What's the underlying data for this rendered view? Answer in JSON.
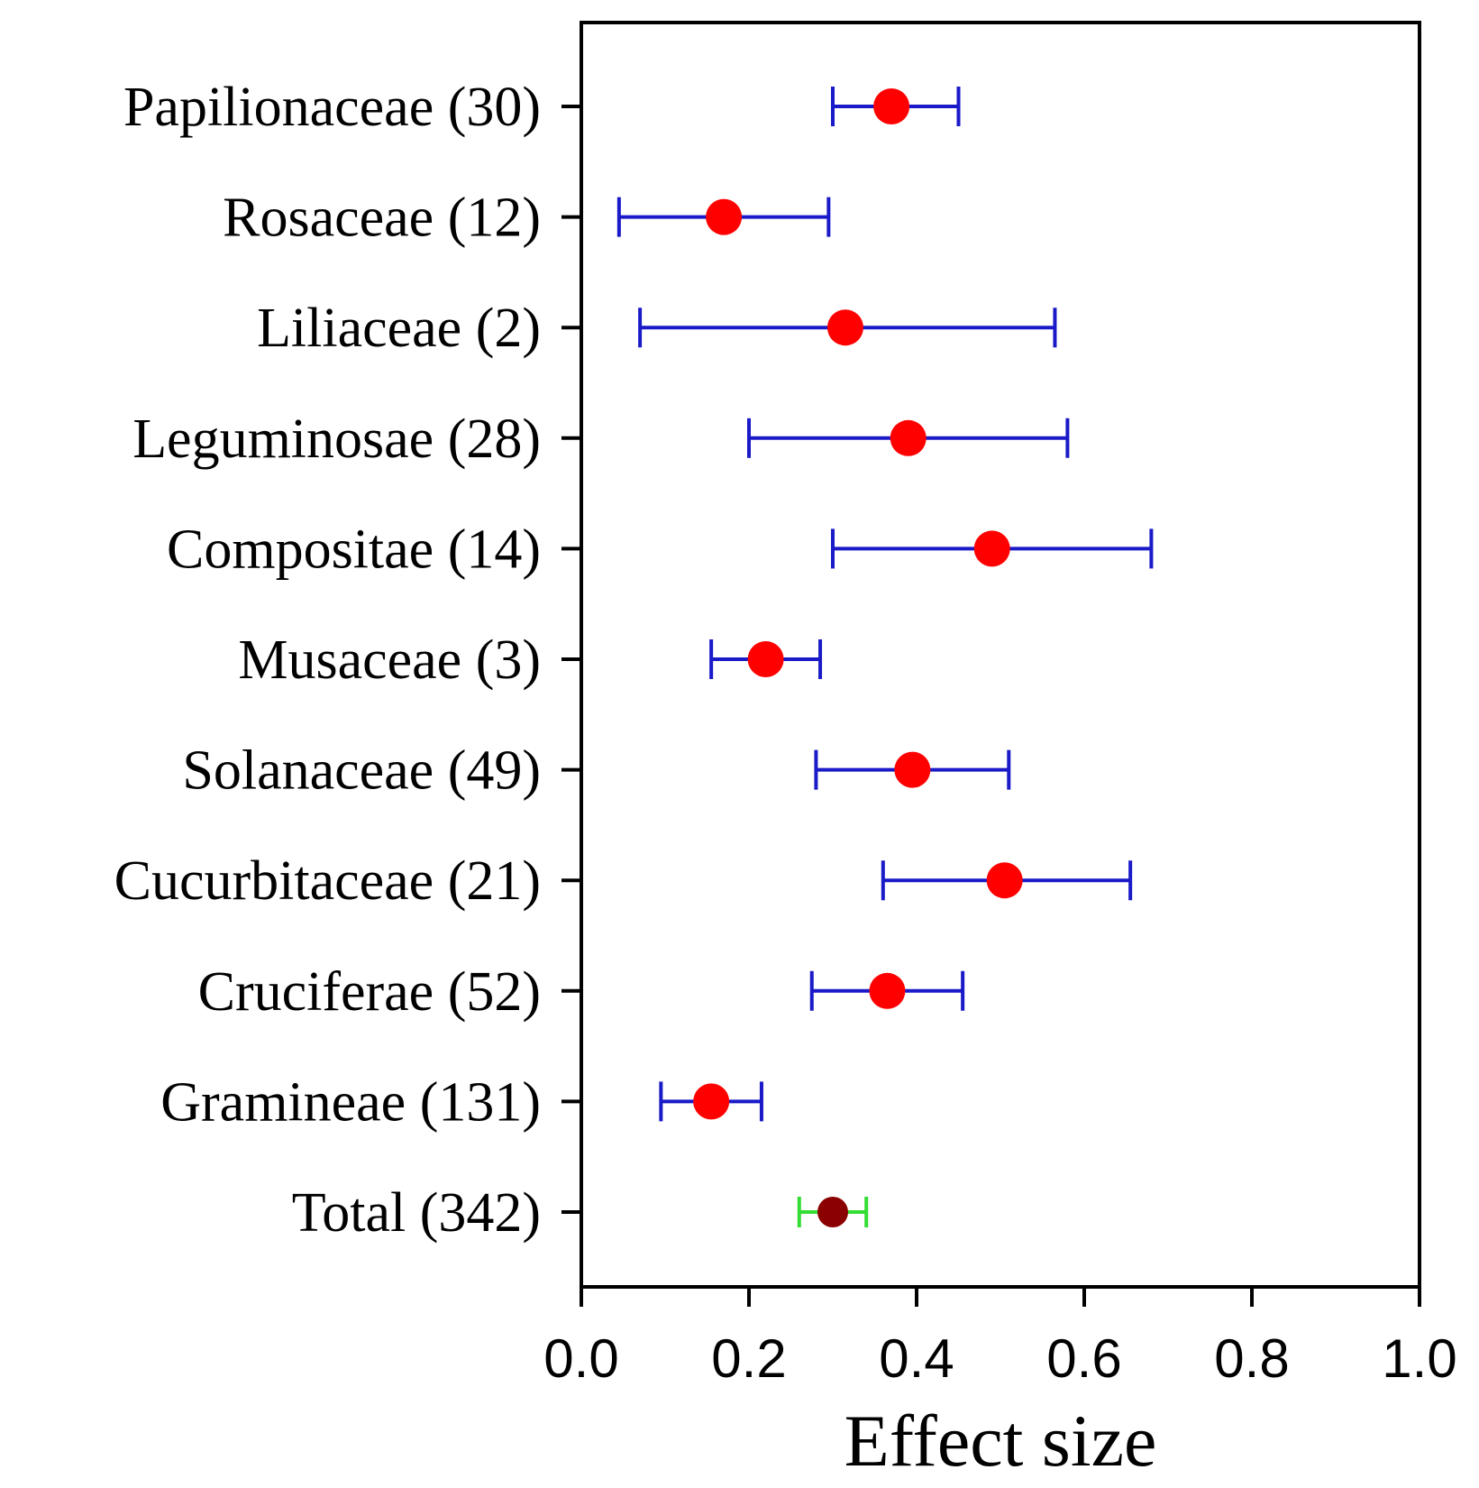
{
  "chart_data": {
    "type": "scatter",
    "subtype": "forest-plot",
    "title": "",
    "xlabel": "Effect size",
    "ylabel": "",
    "xlim": [
      0.0,
      1.0
    ],
    "xticks": [
      "0.0",
      "0.2",
      "0.4",
      "0.6",
      "0.8",
      "1.0"
    ],
    "grid": false,
    "legend": "none",
    "colors": {
      "point": "#ff0000",
      "interval": "#1a1ac8",
      "total_point": "#8b0000",
      "total_interval": "#33dd33",
      "axis": "#000000"
    },
    "rows": [
      {
        "label": "Papilionaceae (30)",
        "estimate": 0.37,
        "lower": 0.3,
        "upper": 0.45,
        "kind": "group"
      },
      {
        "label": "Rosaceae (12)",
        "estimate": 0.17,
        "lower": 0.045,
        "upper": 0.295,
        "kind": "group"
      },
      {
        "label": "Liliaceae (2)",
        "estimate": 0.315,
        "lower": 0.07,
        "upper": 0.565,
        "kind": "group"
      },
      {
        "label": "Leguminosae (28)",
        "estimate": 0.39,
        "lower": 0.2,
        "upper": 0.58,
        "kind": "group"
      },
      {
        "label": "Compositae (14)",
        "estimate": 0.49,
        "lower": 0.3,
        "upper": 0.68,
        "kind": "group"
      },
      {
        "label": "Musaceae (3)",
        "estimate": 0.22,
        "lower": 0.155,
        "upper": 0.285,
        "kind": "group"
      },
      {
        "label": "Solanaceae (49)",
        "estimate": 0.395,
        "lower": 0.28,
        "upper": 0.51,
        "kind": "group"
      },
      {
        "label": "Cucurbitaceae (21)",
        "estimate": 0.505,
        "lower": 0.36,
        "upper": 0.655,
        "kind": "group"
      },
      {
        "label": "Cruciferae (52)",
        "estimate": 0.365,
        "lower": 0.275,
        "upper": 0.455,
        "kind": "group"
      },
      {
        "label": "Gramineae (131)",
        "estimate": 0.155,
        "lower": 0.095,
        "upper": 0.215,
        "kind": "group"
      },
      {
        "label": "Total (342)",
        "estimate": 0.3,
        "lower": 0.26,
        "upper": 0.34,
        "kind": "total"
      }
    ]
  }
}
